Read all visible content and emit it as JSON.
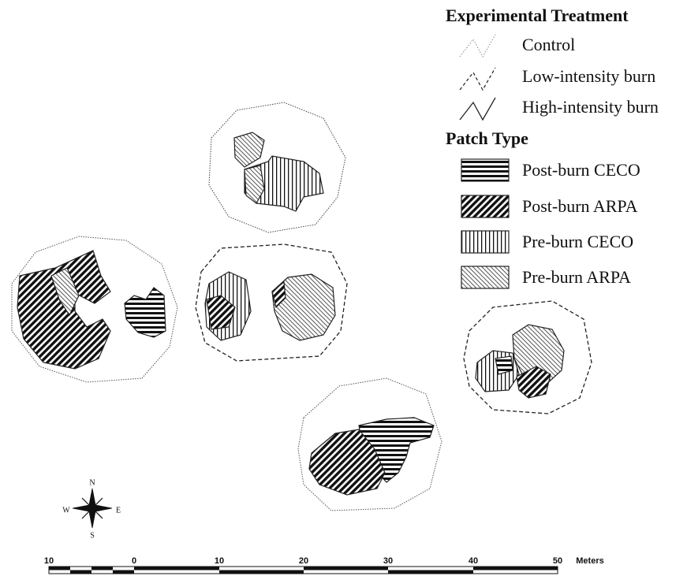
{
  "legend": {
    "treatment_title": "Experimental Treatment",
    "treatments": [
      "Control",
      "Low-intensity burn",
      "High-intensity burn"
    ],
    "patch_title": "Patch Type",
    "patches": [
      "Post-burn CECO",
      "Post-burn ARPA",
      "Pre-burn CECO",
      "Pre-burn ARPA"
    ]
  },
  "compass": {
    "north": "N",
    "south": "S",
    "east": "E",
    "west": "W"
  },
  "scale_bar": {
    "labels": [
      "10",
      "0",
      "10",
      "20",
      "30",
      "40",
      "50"
    ],
    "unit": "Meters"
  }
}
